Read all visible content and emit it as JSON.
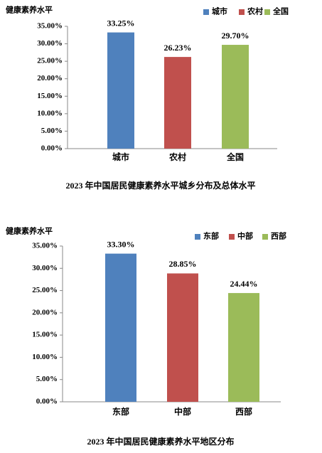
{
  "chart_data": [
    {
      "type": "bar",
      "title": "2023 年中国居民健康素养水平城乡分布及总体水平",
      "y_label": "健康素养水平",
      "categories": [
        "城市",
        "农村",
        "全国"
      ],
      "values": [
        33.25,
        26.23,
        29.7
      ],
      "value_labels": [
        "33.25%",
        "26.23%",
        "29.70%"
      ],
      "colors": [
        "#4f81bd",
        "#c0504d",
        "#9bbb59"
      ],
      "ylim": [
        0,
        35
      ],
      "yticks": [
        {
          "value": 0,
          "label": "0.00%"
        },
        {
          "value": 5,
          "label": "5.00%"
        },
        {
          "value": 10,
          "label": "10.00%"
        },
        {
          "value": 15,
          "label": "15.00%"
        },
        {
          "value": 20,
          "label": "20.00%"
        },
        {
          "value": 25,
          "label": "25.00%"
        },
        {
          "value": 30,
          "label": "30.00%"
        },
        {
          "value": 35,
          "label": "35.00%"
        }
      ]
    },
    {
      "type": "bar",
      "title": "2023 年中国居民健康素养水平地区分布",
      "y_label": "健康素养水平",
      "categories": [
        "东部",
        "中部",
        "西部"
      ],
      "values": [
        33.3,
        28.85,
        24.44
      ],
      "value_labels": [
        "33.30%",
        "28.85%",
        "24.44%"
      ],
      "colors": [
        "#4f81bd",
        "#c0504d",
        "#9bbb59"
      ],
      "ylim": [
        0,
        35
      ],
      "yticks": [
        {
          "value": 0,
          "label": "0.00%"
        },
        {
          "value": 5,
          "label": "5.00%"
        },
        {
          "value": 10,
          "label": "10.00%"
        },
        {
          "value": 15,
          "label": "15.00%"
        },
        {
          "value": 20,
          "label": "20.00%"
        },
        {
          "value": 25,
          "label": "25.00%"
        },
        {
          "value": 30,
          "label": "30.00%"
        },
        {
          "value": 35,
          "label": "35.00%"
        }
      ]
    }
  ]
}
